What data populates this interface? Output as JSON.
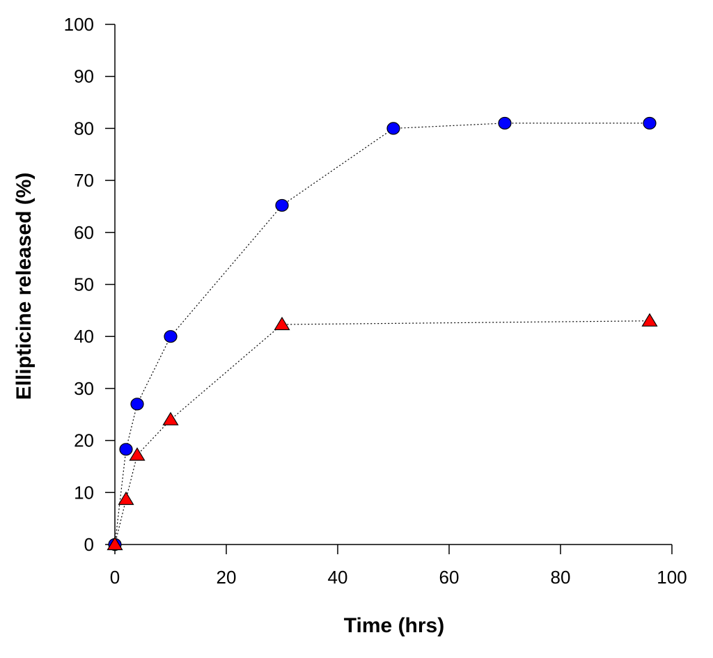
{
  "chart_data": {
    "type": "scatter",
    "title": "",
    "xlabel": "Time (hrs)",
    "ylabel": "Ellipticine released (%)",
    "xlim": [
      0,
      100
    ],
    "ylim": [
      0,
      100
    ],
    "xticks": [
      0,
      20,
      40,
      60,
      80,
      100
    ],
    "yticks": [
      0,
      10,
      20,
      30,
      40,
      50,
      60,
      70,
      80,
      90,
      100
    ],
    "grid": false,
    "legend": "none",
    "series": [
      {
        "marker": "circle",
        "color": "#0000ff",
        "line": "dotted",
        "x": [
          0,
          2,
          4,
          10,
          30,
          50,
          70,
          96
        ],
        "y": [
          0,
          18.3,
          27,
          40,
          65.2,
          80,
          81,
          81
        ]
      },
      {
        "marker": "triangle",
        "color": "#ff0000",
        "line": "dotted",
        "x": [
          0,
          2,
          4,
          10,
          30,
          96
        ],
        "y": [
          0,
          8.7,
          17.2,
          24,
          42.3,
          43
        ]
      }
    ]
  }
}
